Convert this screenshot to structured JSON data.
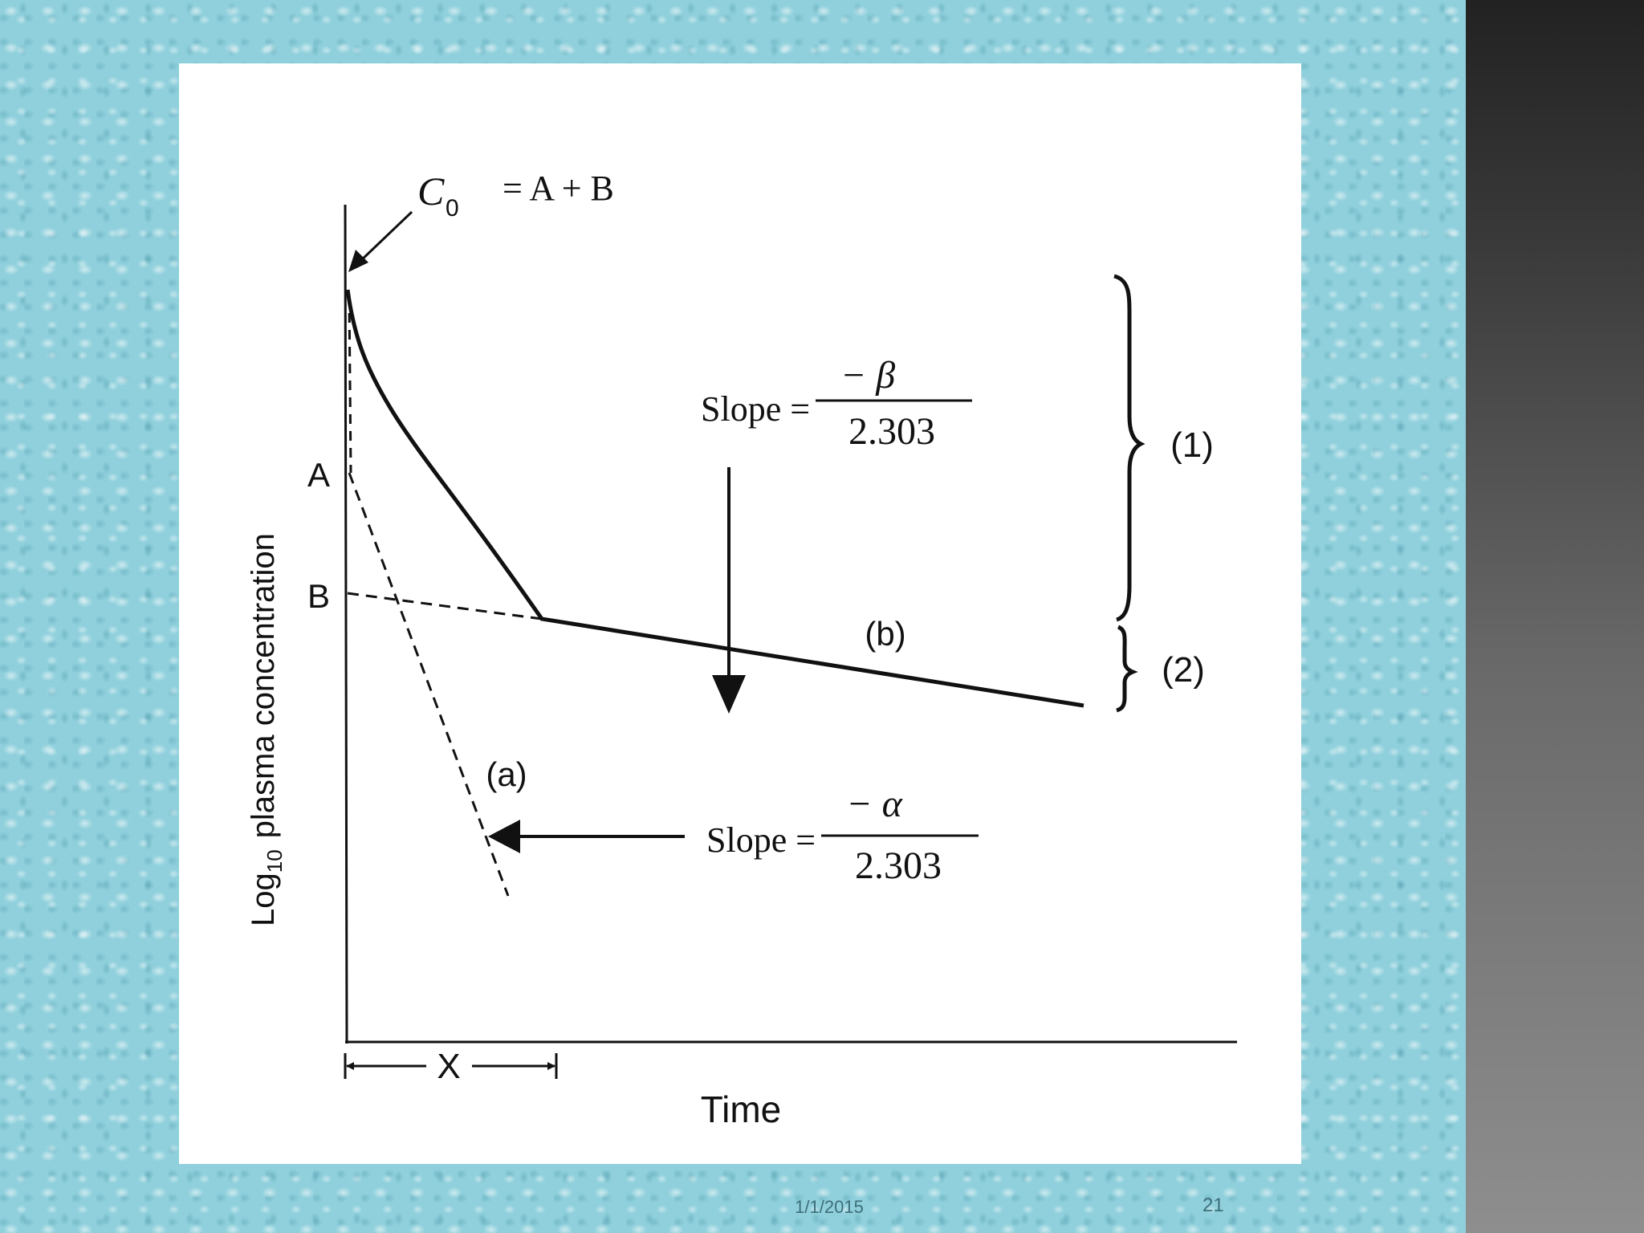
{
  "diagram": {
    "c0_symbol": "C",
    "c0_subscript": "0",
    "c0_equation": "= A + B",
    "y_axis_label_main": "Log",
    "y_axis_label_sub": "10",
    "y_axis_label_rest": "plasma concentration",
    "x_axis_label": "Time",
    "marker_a": "A",
    "marker_b": "B",
    "beta_slope_prefix": "Slope =",
    "beta_numerator": "− β",
    "beta_denominator": "2.303",
    "alpha_slope_prefix": "Slope =",
    "alpha_numerator": "− α",
    "alpha_denominator": "2.303",
    "curve_label_b": "(b)",
    "curve_label_a": "(a)",
    "phase_1": "(1)",
    "phase_2": "(2)",
    "interval_label": "X"
  },
  "footer": {
    "date": "1/1/2015",
    "page": "21"
  }
}
